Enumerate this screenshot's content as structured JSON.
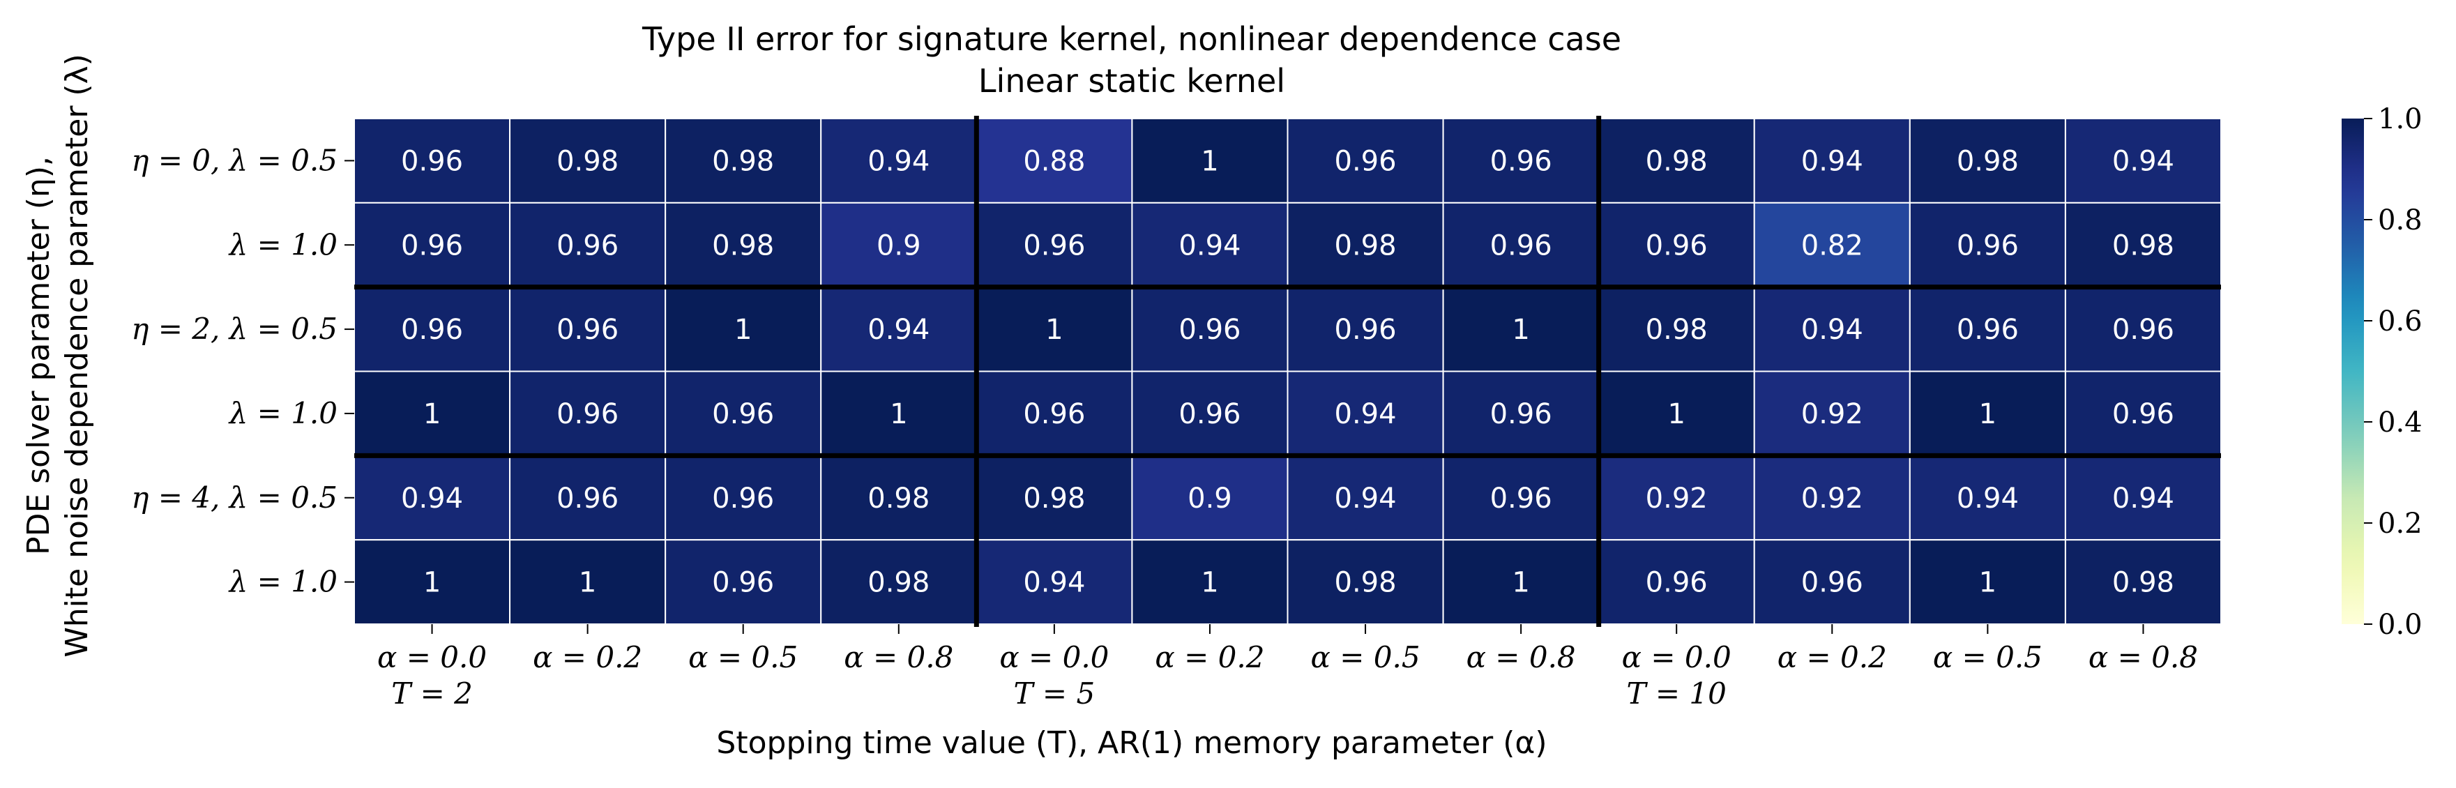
{
  "chart_data": {
    "type": "heatmap",
    "title": "Type II error for signature kernel, nonlinear dependence case",
    "subtitle": "Linear static kernel",
    "xlabel": "Stopping time value (T), AR(1) memory parameter (α)",
    "ylabel_line1": "PDE solver parameter (η),",
    "ylabel_line2": "White noise dependence parameter (λ)",
    "x_tick_labels": [
      "α = 0.0",
      "α = 0.2",
      "α = 0.5",
      "α = 0.8",
      "α = 0.0",
      "α = 0.2",
      "α = 0.5",
      "α = 0.8",
      "α = 0.0",
      "α = 0.2",
      "α = 0.5",
      "α = 0.8"
    ],
    "x_group_labels": [
      "T = 2",
      "",
      "",
      "",
      "T = 5",
      "",
      "",
      "",
      "T = 10",
      "",
      "",
      ""
    ],
    "y_tick_labels": [
      "η = 0, λ = 0.5",
      "λ = 1.0",
      "η = 2, λ = 0.5",
      "λ = 1.0",
      "η = 4, λ = 0.5",
      "λ = 1.0"
    ],
    "values": [
      [
        0.96,
        0.98,
        0.98,
        0.94,
        0.88,
        1,
        0.96,
        0.96,
        0.98,
        0.94,
        0.98,
        0.94
      ],
      [
        0.96,
        0.96,
        0.98,
        0.9,
        0.96,
        0.94,
        0.98,
        0.96,
        0.96,
        0.82,
        0.96,
        0.98
      ],
      [
        0.96,
        0.96,
        1,
        0.94,
        1,
        0.96,
        0.96,
        1,
        0.98,
        0.94,
        0.96,
        0.96
      ],
      [
        1,
        0.96,
        0.96,
        1,
        0.96,
        0.96,
        0.94,
        0.96,
        1,
        0.92,
        1,
        0.96
      ],
      [
        0.94,
        0.96,
        0.96,
        0.98,
        0.98,
        0.9,
        0.94,
        0.96,
        0.92,
        0.92,
        0.94,
        0.94
      ],
      [
        1,
        1,
        0.96,
        0.98,
        0.94,
        1,
        0.98,
        1,
        0.96,
        0.96,
        1,
        0.98
      ]
    ],
    "value_range": [
      0.0,
      1.0
    ],
    "colormap": "YlGnBu",
    "colorbar_ticks": [
      "0.0",
      "0.2",
      "0.4",
      "0.6",
      "0.8",
      "1.0"
    ],
    "grid": true,
    "legend": "colorbar-right"
  }
}
